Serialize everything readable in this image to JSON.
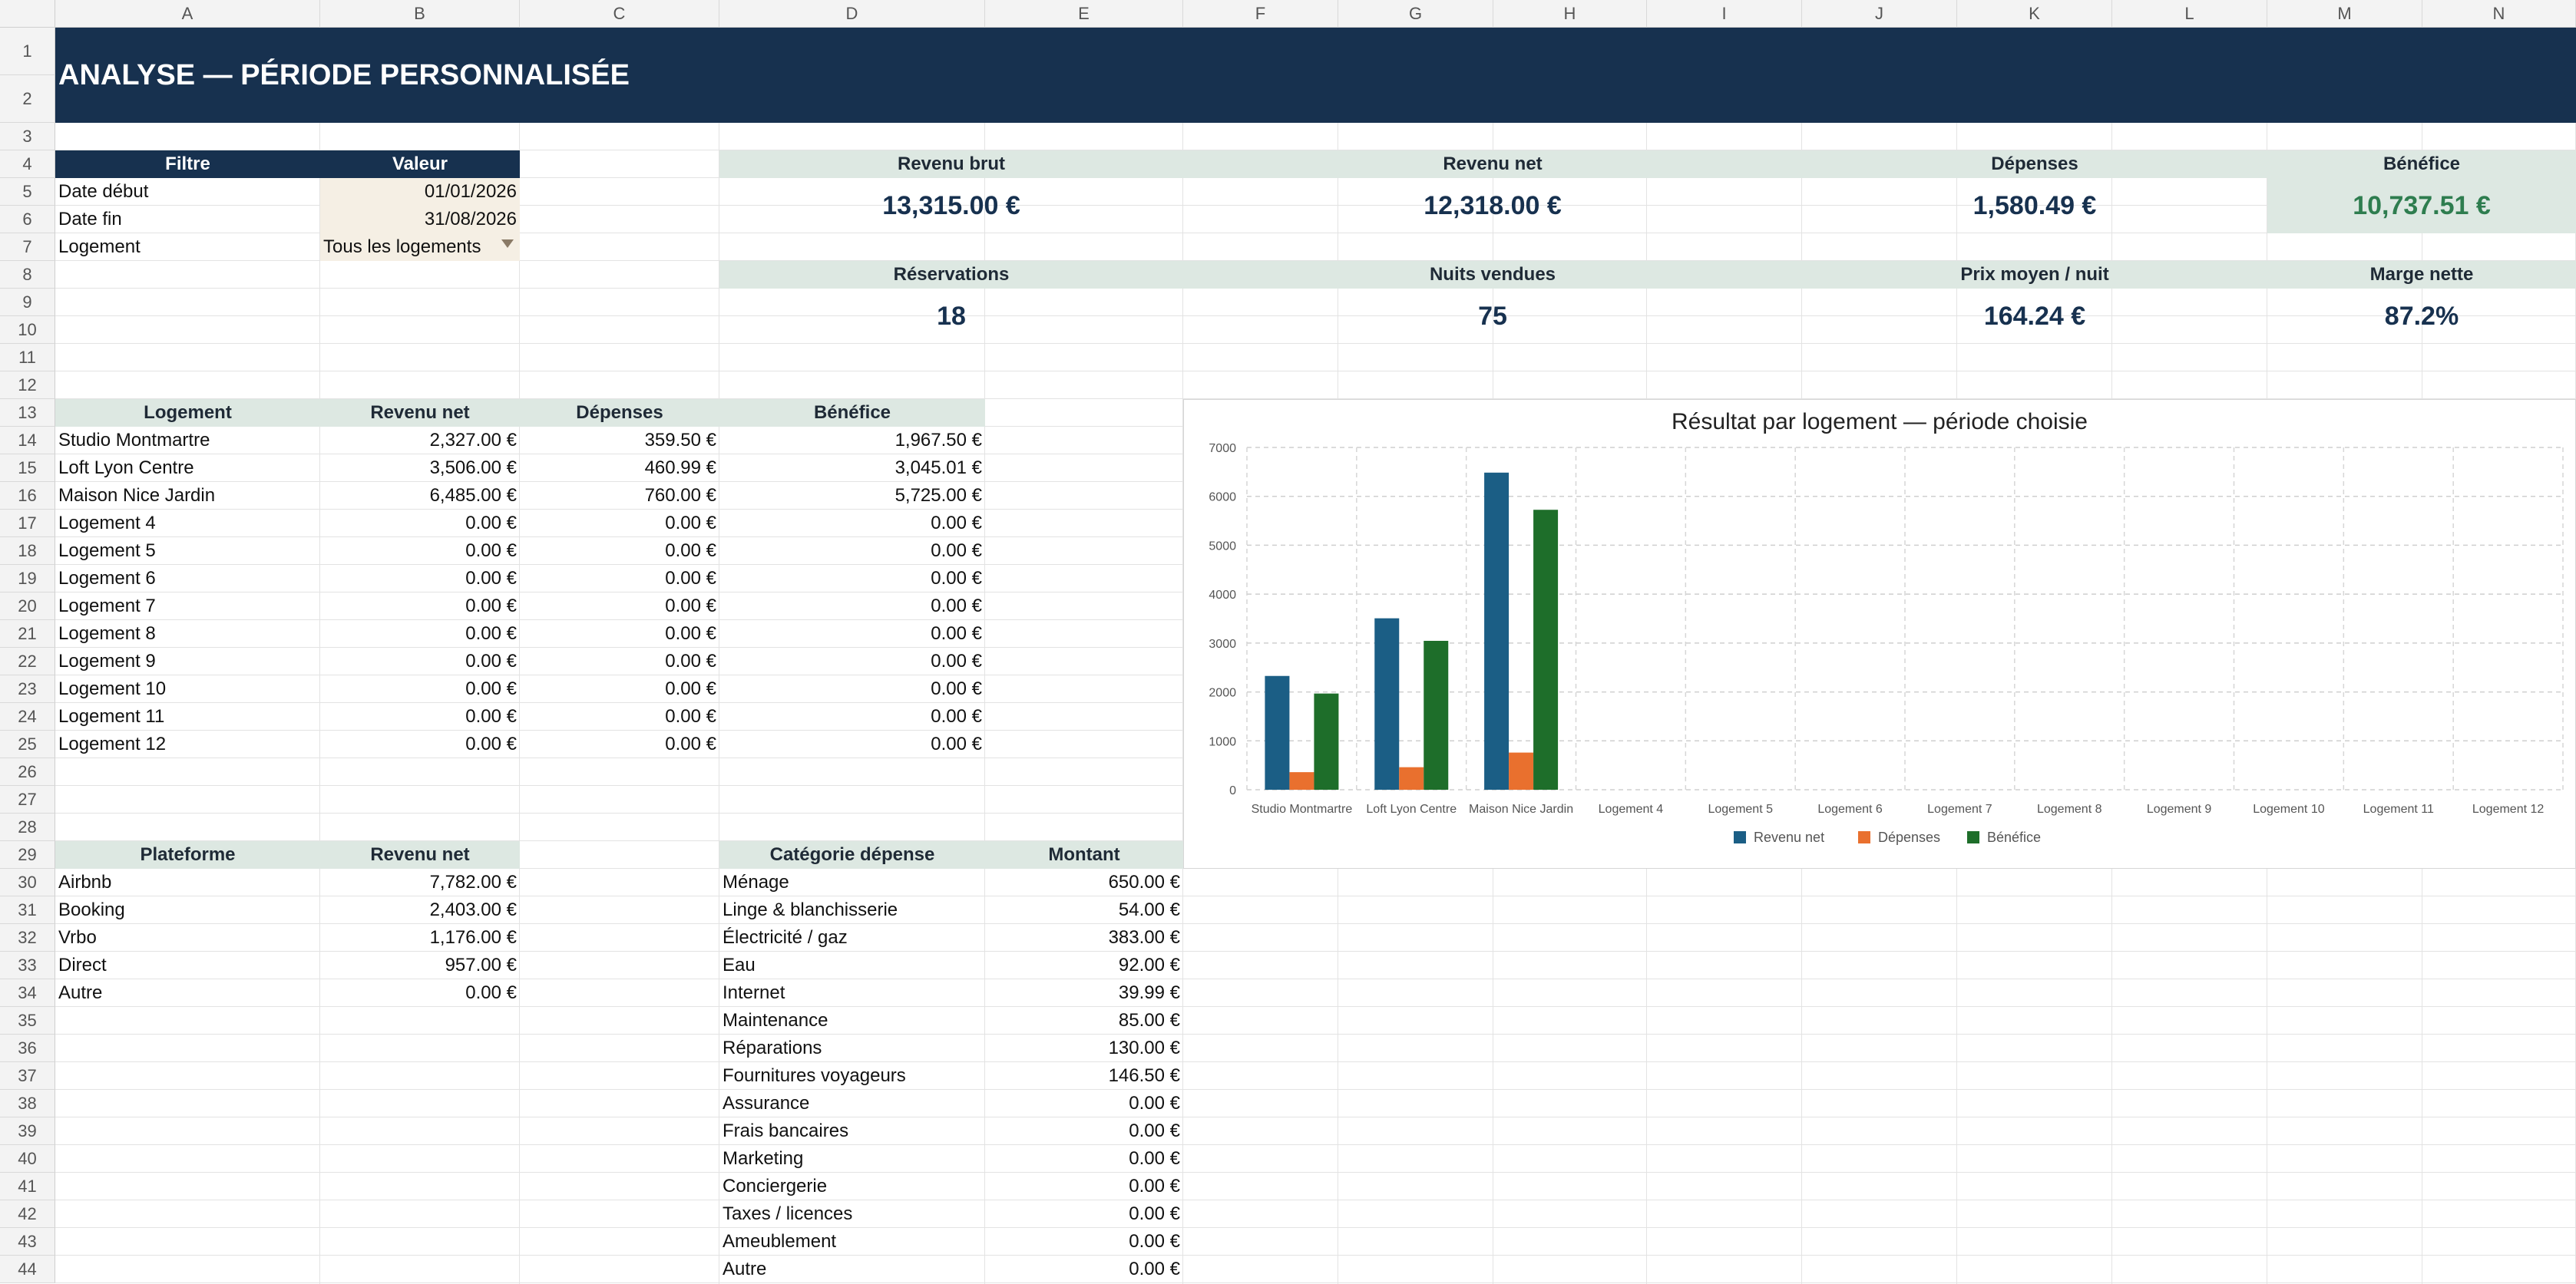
{
  "columns": [
    "A",
    "B",
    "C",
    "D",
    "E",
    "F",
    "G",
    "H",
    "I",
    "J",
    "K",
    "L",
    "M",
    "N"
  ],
  "rows": [
    "1",
    "2",
    "3",
    "4",
    "5",
    "6",
    "7",
    "8",
    "9",
    "10",
    "11",
    "12",
    "13",
    "14",
    "15",
    "16",
    "17",
    "18",
    "19",
    "20",
    "21",
    "22",
    "23",
    "24",
    "25",
    "26",
    "27",
    "28",
    "29",
    "30",
    "31",
    "32",
    "33",
    "34",
    "35",
    "36",
    "37",
    "38",
    "39",
    "40",
    "41",
    "42",
    "43",
    "44"
  ],
  "title": "ANALYSE — PÉRIODE PERSONNALISÉE",
  "filters": {
    "col_filter": "Filtre",
    "col_value": "Valeur",
    "items": [
      {
        "label": "Date début",
        "value": "01/01/2026"
      },
      {
        "label": "Date fin",
        "value": "31/08/2026"
      },
      {
        "label": "Logement",
        "value": "Tous les logements"
      }
    ]
  },
  "kpis_row1": [
    {
      "label": "Revenu brut",
      "value": "13,315.00 €"
    },
    {
      "label": "Revenu net",
      "value": "12,318.00 €"
    },
    {
      "label": "Dépenses",
      "value": "1,580.49 €"
    },
    {
      "label": "Bénéfice",
      "value": "10,737.51 €"
    }
  ],
  "kpis_row2": [
    {
      "label": "Réservations",
      "value": "18"
    },
    {
      "label": "Nuits vendues",
      "value": "75"
    },
    {
      "label": "Prix moyen / nuit",
      "value": "164.24 €"
    },
    {
      "label": "Marge nette",
      "value": "87.2%"
    }
  ],
  "logement_table": {
    "headers": [
      "Logement",
      "Revenu net",
      "Dépenses",
      "Bénéfice"
    ],
    "rows": [
      [
        "Studio Montmartre",
        "2,327.00 €",
        "359.50 €",
        "1,967.50 €"
      ],
      [
        "Loft Lyon Centre",
        "3,506.00 €",
        "460.99 €",
        "3,045.01 €"
      ],
      [
        "Maison Nice Jardin",
        "6,485.00 €",
        "760.00 €",
        "5,725.00 €"
      ],
      [
        "Logement 4",
        "0.00 €",
        "0.00 €",
        "0.00 €"
      ],
      [
        "Logement 5",
        "0.00 €",
        "0.00 €",
        "0.00 €"
      ],
      [
        "Logement 6",
        "0.00 €",
        "0.00 €",
        "0.00 €"
      ],
      [
        "Logement 7",
        "0.00 €",
        "0.00 €",
        "0.00 €"
      ],
      [
        "Logement 8",
        "0.00 €",
        "0.00 €",
        "0.00 €"
      ],
      [
        "Logement 9",
        "0.00 €",
        "0.00 €",
        "0.00 €"
      ],
      [
        "Logement 10",
        "0.00 €",
        "0.00 €",
        "0.00 €"
      ],
      [
        "Logement 11",
        "0.00 €",
        "0.00 €",
        "0.00 €"
      ],
      [
        "Logement 12",
        "0.00 €",
        "0.00 €",
        "0.00 €"
      ]
    ]
  },
  "platform_table": {
    "headers": [
      "Plateforme",
      "Revenu net"
    ],
    "rows": [
      [
        "Airbnb",
        "7,782.00 €"
      ],
      [
        "Booking",
        "2,403.00 €"
      ],
      [
        "Vrbo",
        "1,176.00 €"
      ],
      [
        "Direct",
        "957.00 €"
      ],
      [
        "Autre",
        "0.00 €"
      ]
    ]
  },
  "expense_table": {
    "headers": [
      "Catégorie dépense",
      "Montant"
    ],
    "rows": [
      [
        "Ménage",
        "650.00 €"
      ],
      [
        "Linge & blanchisserie",
        "54.00 €"
      ],
      [
        "Électricité / gaz",
        "383.00 €"
      ],
      [
        "Eau",
        "92.00 €"
      ],
      [
        "Internet",
        "39.99 €"
      ],
      [
        "Maintenance",
        "85.00 €"
      ],
      [
        "Réparations",
        "130.00 €"
      ],
      [
        "Fournitures voyageurs",
        "146.50 €"
      ],
      [
        "Assurance",
        "0.00 €"
      ],
      [
        "Frais bancaires",
        "0.00 €"
      ],
      [
        "Marketing",
        "0.00 €"
      ],
      [
        "Conciergerie",
        "0.00 €"
      ],
      [
        "Taxes / licences",
        "0.00 €"
      ],
      [
        "Ameublement",
        "0.00 €"
      ],
      [
        "Autre",
        "0.00 €"
      ]
    ]
  },
  "colors": {
    "header_dark": "#17314f",
    "header_light": "#dde8e2",
    "positive": "#2e7d4f",
    "series_revenu": "#1b5e85",
    "series_depenses": "#e9702e",
    "series_benefice": "#1e6e2a"
  },
  "chart_data": {
    "type": "bar",
    "title": "Résultat par logement — période choisie",
    "categories": [
      "Studio Montmartre",
      "Loft Lyon Centre",
      "Maison Nice Jardin",
      "Logement 4",
      "Logement 5",
      "Logement 6",
      "Logement 7",
      "Logement 8",
      "Logement 9",
      "Logement 10",
      "Logement 11",
      "Logement 12"
    ],
    "series": [
      {
        "name": "Revenu net",
        "values": [
          2327,
          3506,
          6485,
          0,
          0,
          0,
          0,
          0,
          0,
          0,
          0,
          0
        ]
      },
      {
        "name": "Dépenses",
        "values": [
          359.5,
          460.99,
          760,
          0,
          0,
          0,
          0,
          0,
          0,
          0,
          0,
          0
        ]
      },
      {
        "name": "Bénéfice",
        "values": [
          1967.5,
          3045.01,
          5725,
          0,
          0,
          0,
          0,
          0,
          0,
          0,
          0,
          0
        ]
      }
    ],
    "ylim": [
      0,
      7000
    ],
    "yticks": [
      "0",
      "1000",
      "2000",
      "3000",
      "4000",
      "5000",
      "6000",
      "7000"
    ],
    "grid": true,
    "legend": "bottom"
  }
}
